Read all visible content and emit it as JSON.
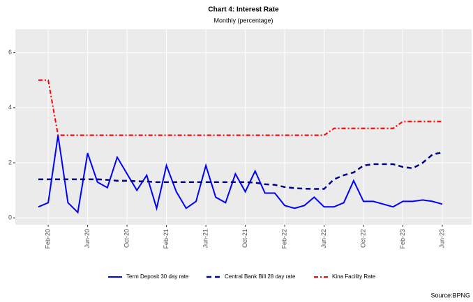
{
  "chart_data": {
    "type": "line",
    "title": "Chart 4: Interest Rate",
    "subtitle": "Monthly (percentage)",
    "source": "Source:BPNG",
    "categories": [
      null,
      "Feb-20",
      null,
      null,
      null,
      "Jun-20",
      null,
      null,
      null,
      "Oct-20",
      null,
      null,
      null,
      "Feb-21",
      null,
      null,
      null,
      "Jun-21",
      null,
      null,
      null,
      "Oct-21",
      null,
      null,
      null,
      "Feb-22",
      null,
      null,
      null,
      "Jun-22",
      null,
      null,
      null,
      "Oct-22",
      null,
      null,
      null,
      "Feb-23",
      null,
      null,
      null,
      "Jun-23"
    ],
    "series": [
      {
        "name": "Term Deposit 30 day rate",
        "color": "#0000ff",
        "values": [
          0.4,
          0.55,
          3.0,
          0.55,
          0.2,
          2.35,
          1.3,
          1.1,
          2.2,
          1.6,
          1.0,
          1.55,
          0.35,
          1.9,
          0.95,
          0.35,
          0.6,
          1.9,
          0.75,
          0.55,
          1.6,
          0.95,
          1.7,
          0.9,
          0.9,
          0.45,
          0.35,
          0.45,
          0.75,
          0.4,
          0.4,
          0.55,
          1.35,
          0.6,
          0.6,
          0.5,
          0.4,
          0.6,
          0.6,
          0.65,
          0.6,
          0.5
        ]
      },
      {
        "name": "Central Bank Bill 28 day rate",
        "color": "#00008b",
        "values": [
          1.4,
          1.4,
          1.4,
          1.4,
          1.4,
          1.4,
          1.4,
          1.38,
          1.35,
          1.35,
          1.33,
          1.32,
          1.3,
          1.3,
          1.3,
          1.3,
          1.3,
          1.3,
          1.3,
          1.3,
          1.3,
          1.3,
          1.28,
          1.22,
          1.2,
          1.12,
          1.08,
          1.06,
          1.05,
          1.05,
          1.4,
          1.55,
          1.65,
          1.9,
          1.95,
          1.95,
          1.95,
          1.85,
          1.8,
          2.0,
          2.3,
          2.38
        ]
      },
      {
        "name": "Kina Facility Rate",
        "color": "#ff0000",
        "values": [
          5.0,
          5.0,
          3.0,
          3.0,
          3.0,
          3.0,
          3.0,
          3.0,
          3.0,
          3.0,
          3.0,
          3.0,
          3.0,
          3.0,
          3.0,
          3.0,
          3.0,
          3.0,
          3.0,
          3.0,
          3.0,
          3.0,
          3.0,
          3.0,
          3.0,
          3.0,
          3.0,
          3.0,
          3.0,
          3.0,
          3.25,
          3.25,
          3.25,
          3.25,
          3.25,
          3.25,
          3.25,
          3.5,
          3.5,
          3.5,
          3.5,
          3.5
        ]
      }
    ],
    "ylim": [
      -0.25,
      6.85
    ],
    "yticks": [
      0,
      2,
      4,
      6
    ],
    "grid": true,
    "legend": "bottom"
  }
}
